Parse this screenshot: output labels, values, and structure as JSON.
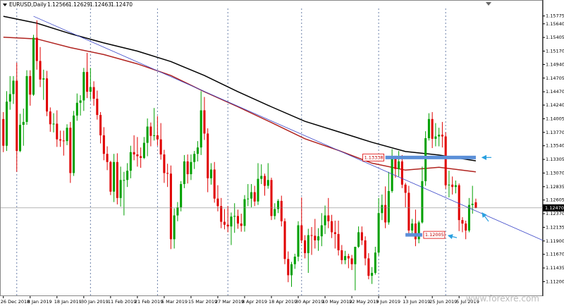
{
  "chart_data": {
    "type": "candlestick",
    "title": "EURUSD,Daily",
    "watermark": "www.forexre.com",
    "up_color": "#00a000",
    "down_color": "#e00000",
    "categories": [
      "26 Dec 2018",
      null,
      null,
      null,
      null,
      null,
      null,
      null,
      "8 Jan 2019",
      null,
      null,
      null,
      null,
      null,
      null,
      null,
      "18 Jan 2019",
      null,
      null,
      null,
      null,
      null,
      null,
      null,
      "30 Jan 2019",
      null,
      null,
      null,
      null,
      null,
      null,
      null,
      "11 Feb 2019",
      null,
      null,
      null,
      null,
      null,
      null,
      null,
      "21 Feb 2019",
      null,
      null,
      null,
      null,
      null,
      null,
      null,
      "5 Mar 2019",
      null,
      null,
      null,
      null,
      null,
      null,
      null,
      "15 Mar 2019",
      null,
      null,
      null,
      null,
      null,
      null,
      null,
      "27 Mar 2019",
      null,
      null,
      null,
      null,
      null,
      null,
      null,
      "8 Apr 2019",
      null,
      null,
      null,
      null,
      null,
      null,
      null,
      "18 Apr 2019",
      null,
      null,
      null,
      null,
      null,
      null,
      null,
      "30 Apr 2019",
      null,
      null,
      null,
      null,
      null,
      null,
      null,
      "10 May 2019",
      null,
      null,
      null,
      null,
      null,
      null,
      null,
      "22 May 2019",
      null,
      null,
      null,
      null,
      null,
      null,
      null,
      "3 Jun 2019",
      null,
      null,
      null,
      null,
      null,
      null,
      null,
      "13 Jun 2019",
      null,
      null,
      null,
      null,
      null,
      null,
      null,
      "25 Jun 2019",
      null,
      null,
      null,
      null,
      null,
      null,
      null,
      "5 Jul 2019",
      null,
      null,
      null,
      null,
      null
    ],
    "ohlc": [
      [
        1.14,
        1.1412,
        1.1343,
        1.1354
      ],
      [
        1.1354,
        1.1448,
        1.1345,
        1.143
      ],
      [
        1.143,
        1.1474,
        1.1416,
        1.1443
      ],
      [
        1.1443,
        1.1474,
        1.1426,
        1.1466
      ],
      [
        1.1466,
        1.1497,
        1.1309,
        1.1345
      ],
      [
        1.1345,
        1.1409,
        1.1343,
        1.139
      ],
      [
        1.139,
        1.1418,
        1.1354,
        1.1395
      ],
      [
        1.1395,
        1.1484,
        1.139,
        1.1474
      ],
      [
        1.1474,
        1.1484,
        1.1423,
        1.1442
      ],
      [
        1.1442,
        1.1545,
        1.144,
        1.154
      ],
      [
        1.154,
        1.157,
        1.1485,
        1.15
      ],
      [
        1.15,
        1.1524,
        1.1455,
        1.1468
      ],
      [
        1.1468,
        1.1485,
        1.1433,
        1.147
      ],
      [
        1.147,
        1.1483,
        1.1405,
        1.1413
      ],
      [
        1.1413,
        1.142,
        1.1378,
        1.1391
      ],
      [
        1.1391,
        1.141,
        1.1377,
        1.1392
      ],
      [
        1.1392,
        1.1415,
        1.1352,
        1.1365
      ],
      [
        1.1365,
        1.138,
        1.1352,
        1.1363
      ],
      [
        1.1363,
        1.138,
        1.1337,
        1.1362
      ],
      [
        1.1362,
        1.1391,
        1.1355,
        1.1385
      ],
      [
        1.1385,
        1.1395,
        1.129,
        1.1307
      ],
      [
        1.1307,
        1.1414,
        1.1302,
        1.1406
      ],
      [
        1.1406,
        1.1444,
        1.1397,
        1.1428
      ],
      [
        1.1428,
        1.1441,
        1.1406,
        1.1432
      ],
      [
        1.1432,
        1.1488,
        1.1414,
        1.1481
      ],
      [
        1.1481,
        1.1514,
        1.1436,
        1.1447
      ],
      [
        1.1447,
        1.1488,
        1.1433,
        1.1455
      ],
      [
        1.1455,
        1.1465,
        1.1423,
        1.1435
      ],
      [
        1.1435,
        1.1449,
        1.1399,
        1.1407
      ],
      [
        1.1407,
        1.1412,
        1.1358,
        1.1372
      ],
      [
        1.1372,
        1.1386,
        1.1329,
        1.134
      ],
      [
        1.134,
        1.1353,
        1.1312,
        1.1326
      ],
      [
        1.1326,
        1.1328,
        1.1269,
        1.1275
      ],
      [
        1.1275,
        1.134,
        1.1257,
        1.1326
      ],
      [
        1.1326,
        1.1341,
        1.1253,
        1.1264
      ],
      [
        1.1264,
        1.1318,
        1.1249,
        1.1295
      ],
      [
        1.1295,
        1.1309,
        1.1234,
        1.1295
      ],
      [
        1.1295,
        1.1324,
        1.1283,
        1.1311
      ],
      [
        1.1311,
        1.1354,
        1.1298,
        1.1343
      ],
      [
        1.1343,
        1.1372,
        1.1329,
        1.1339
      ],
      [
        1.1339,
        1.1369,
        1.1318,
        1.1336
      ],
      [
        1.1336,
        1.1351,
        1.1316,
        1.1333
      ],
      [
        1.1333,
        1.1369,
        1.1331,
        1.1359
      ],
      [
        1.1359,
        1.1401,
        1.1336,
        1.1387
      ],
      [
        1.1387,
        1.1394,
        1.1353,
        1.1371
      ],
      [
        1.1371,
        1.1419,
        1.1363,
        1.1372
      ],
      [
        1.1372,
        1.1405,
        1.1354,
        1.1365
      ],
      [
        1.1365,
        1.1393,
        1.133,
        1.1339
      ],
      [
        1.1339,
        1.1347,
        1.129,
        1.1307
      ],
      [
        1.1307,
        1.1323,
        1.1283,
        1.1306
      ],
      [
        1.1306,
        1.132,
        1.1176,
        1.1193
      ],
      [
        1.1193,
        1.1246,
        1.1177,
        1.1234
      ],
      [
        1.1234,
        1.1257,
        1.1224,
        1.1248
      ],
      [
        1.1248,
        1.1293,
        1.1241,
        1.1288
      ],
      [
        1.1288,
        1.1338,
        1.1281,
        1.1327
      ],
      [
        1.1327,
        1.1339,
        1.1289,
        1.1305
      ],
      [
        1.1305,
        1.1339,
        1.1295,
        1.1326
      ],
      [
        1.1326,
        1.1345,
        1.1314,
        1.134
      ],
      [
        1.134,
        1.1362,
        1.1327,
        1.1351
      ],
      [
        1.1351,
        1.1448,
        1.1338,
        1.1415
      ],
      [
        1.1415,
        1.1438,
        1.1364,
        1.1375
      ],
      [
        1.1375,
        1.1384,
        1.1274,
        1.1298
      ],
      [
        1.1298,
        1.1324,
        1.1287,
        1.1313
      ],
      [
        1.1313,
        1.1326,
        1.1256,
        1.1263
      ],
      [
        1.1263,
        1.1286,
        1.1241,
        1.125
      ],
      [
        1.125,
        1.1264,
        1.1212,
        1.1223
      ],
      [
        1.1223,
        1.1245,
        1.121,
        1.1218
      ],
      [
        1.1218,
        1.125,
        1.1205,
        1.1215
      ],
      [
        1.1215,
        1.1239,
        1.1183,
        1.1232
      ],
      [
        1.1232,
        1.1255,
        1.1204,
        1.1233
      ],
      [
        1.1233,
        1.1244,
        1.1211,
        1.122
      ],
      [
        1.122,
        1.1237,
        1.1206,
        1.1216
      ],
      [
        1.1216,
        1.1269,
        1.1206,
        1.1262
      ],
      [
        1.1262,
        1.1288,
        1.125,
        1.1263
      ],
      [
        1.1263,
        1.1288,
        1.1248,
        1.1274
      ],
      [
        1.1274,
        1.1285,
        1.125,
        1.1258
      ],
      [
        1.1258,
        1.1324,
        1.1252,
        1.1297
      ],
      [
        1.1297,
        1.1322,
        1.1288,
        1.1302
      ],
      [
        1.1302,
        1.1306,
        1.1268,
        1.1285
      ],
      [
        1.1285,
        1.1324,
        1.128,
        1.1295
      ],
      [
        1.1295,
        1.1299,
        1.1226,
        1.1233
      ],
      [
        1.1233,
        1.1255,
        1.1227,
        1.1245
      ],
      [
        1.1245,
        1.1262,
        1.1238,
        1.1259
      ],
      [
        1.1259,
        1.1268,
        1.1215,
        1.1224
      ],
      [
        1.1224,
        1.1229,
        1.115,
        1.1159
      ],
      [
        1.1159,
        1.1172,
        1.1119,
        1.1131
      ],
      [
        1.1131,
        1.1154,
        1.1111,
        1.115
      ],
      [
        1.115,
        1.1168,
        1.1142,
        1.1163
      ],
      [
        1.1163,
        1.1224,
        1.1155,
        1.1217
      ],
      [
        1.1217,
        1.1265,
        1.1186,
        1.1191
      ],
      [
        1.1191,
        1.12,
        1.116,
        1.1169
      ],
      [
        1.1169,
        1.1211,
        1.1135,
        1.12
      ],
      [
        1.12,
        1.1214,
        1.1166,
        1.1199
      ],
      [
        1.1199,
        1.1228,
        1.1177,
        1.1191
      ],
      [
        1.1191,
        1.1212,
        1.1173,
        1.1198
      ],
      [
        1.1198,
        1.1238,
        1.1181,
        1.1217
      ],
      [
        1.1217,
        1.1251,
        1.1202,
        1.1234
      ],
      [
        1.1234,
        1.1264,
        1.1212,
        1.1224
      ],
      [
        1.1224,
        1.1235,
        1.1195,
        1.1205
      ],
      [
        1.1205,
        1.1225,
        1.1177,
        1.1202
      ],
      [
        1.1202,
        1.1225,
        1.1165,
        1.1174
      ],
      [
        1.1174,
        1.1183,
        1.115,
        1.1157
      ],
      [
        1.1157,
        1.1173,
        1.115,
        1.1164
      ],
      [
        1.1164,
        1.1168,
        1.1143,
        1.116
      ],
      [
        1.116,
        1.1166,
        1.114,
        1.115
      ],
      [
        1.115,
        1.118,
        1.1105,
        1.118
      ],
      [
        1.118,
        1.1215,
        1.1178,
        1.1205
      ],
      [
        1.1205,
        1.1215,
        1.1183,
        1.1191
      ],
      [
        1.1191,
        1.1198,
        1.1148,
        1.116
      ],
      [
        1.116,
        1.1169,
        1.1124,
        1.113
      ],
      [
        1.113,
        1.1145,
        1.1116,
        1.1135
      ],
      [
        1.1135,
        1.118,
        1.1132,
        1.117
      ],
      [
        1.117,
        1.1264,
        1.1165,
        1.1238
      ],
      [
        1.1238,
        1.127,
        1.1226,
        1.1252
      ],
      [
        1.1252,
        1.1284,
        1.1212,
        1.1222
      ],
      [
        1.1222,
        1.1309,
        1.1218,
        1.1276
      ],
      [
        1.1276,
        1.1348,
        1.1273,
        1.1332
      ],
      [
        1.1332,
        1.1333,
        1.1299,
        1.1314
      ],
      [
        1.1314,
        1.1345,
        1.1301,
        1.1327
      ],
      [
        1.1327,
        1.1338,
        1.1281,
        1.1287
      ],
      [
        1.1287,
        1.129,
        1.1248,
        1.1273
      ],
      [
        1.1273,
        1.1285,
        1.1201,
        1.1208
      ],
      [
        1.1208,
        1.1228,
        1.12,
        1.122
      ],
      [
        1.122,
        1.1244,
        1.1181,
        1.1193
      ],
      [
        1.1193,
        1.1225,
        1.1186,
        1.1222
      ],
      [
        1.1222,
        1.1318,
        1.122,
        1.1293
      ],
      [
        1.1293,
        1.1379,
        1.1285,
        1.1367
      ],
      [
        1.1367,
        1.141,
        1.1363,
        1.14
      ],
      [
        1.14,
        1.1412,
        1.135,
        1.1366
      ],
      [
        1.1366,
        1.1393,
        1.1353,
        1.137
      ],
      [
        1.137,
        1.1385,
        1.1353,
        1.1373
      ],
      [
        1.1373,
        1.1395,
        1.1351,
        1.137
      ],
      [
        1.137,
        1.1377,
        1.128,
        1.1286
      ],
      [
        1.1286,
        1.1311,
        1.1265,
        1.1287
      ],
      [
        1.1287,
        1.1301,
        1.127,
        1.1283
      ],
      [
        1.1283,
        1.1294,
        1.1272,
        1.1286
      ],
      [
        1.1286,
        1.1289,
        1.1207,
        1.1226
      ],
      [
        1.1226,
        1.1231,
        1.1205,
        1.122
      ],
      [
        1.122,
        1.1225,
        1.1193,
        1.1208
      ],
      [
        1.1208,
        1.1264,
        1.1205,
        1.1252
      ],
      [
        1.1252,
        1.1285,
        1.1237,
        1.1254
      ],
      [
        1.12566,
        1.12629,
        1.12463,
        1.1247
      ]
    ],
    "current_price": {
      "value": 1.1247,
      "label": "1.12470"
    },
    "series": [
      {
        "color": "#000000",
        "x": [
          0,
          10,
          20,
          30,
          40,
          50,
          60,
          70,
          80,
          90,
          100,
          110,
          120,
          130,
          141
        ],
        "values": [
          1.1577,
          1.1565,
          1.1547,
          1.1531,
          1.1517,
          1.1499,
          1.1475,
          1.1447,
          1.1421,
          1.1396,
          1.1378,
          1.136,
          1.1344,
          1.1338,
          1.1328
        ]
      },
      {
        "color": "#b0231f",
        "x": [
          0,
          10,
          20,
          30,
          40,
          50,
          60,
          70,
          80,
          90,
          100,
          110,
          120,
          130,
          141
        ],
        "values": [
          1.1541,
          1.1538,
          1.1523,
          1.1511,
          1.1495,
          1.1475,
          1.1447,
          1.1421,
          1.1394,
          1.1366,
          1.1346,
          1.1324,
          1.1312,
          1.1317,
          1.1309
        ]
      }
    ],
    "trendline": {
      "color": "#3a46c8",
      "x": [
        9,
        161
      ],
      "values": [
        1.1577,
        1.1191
      ]
    },
    "levels": [
      {
        "value": 1.13338,
        "x": [
          114,
          141
        ],
        "color": "#5b8fd8"
      },
      {
        "value": 1.12005,
        "x": [
          120,
          125
        ],
        "color": "#5b8fd8"
      }
    ],
    "period_separators": [
      4,
      26,
      46,
      67,
      89,
      112,
      132
    ],
    "xlim": [
      -1,
      161
    ],
    "ylim": [
      1.1095,
      1.1605
    ],
    "yticks": [
      {
        "value": 1.15775,
        "label": "1.15775"
      },
      {
        "value": 1.1564,
        "label": "1.15640"
      },
      {
        "value": 1.15405,
        "label": "1.15405"
      },
      {
        "value": 1.1517,
        "label": "1.15170"
      },
      {
        "value": 1.1494,
        "label": "1.14940"
      },
      {
        "value": 1.14705,
        "label": "1.14705"
      },
      {
        "value": 1.1447,
        "label": "1.14470"
      },
      {
        "value": 1.1424,
        "label": "1.14240"
      },
      {
        "value": 1.14005,
        "label": "1.14005"
      },
      {
        "value": 1.1377,
        "label": "1.13770"
      },
      {
        "value": 1.1354,
        "label": "1.13540"
      },
      {
        "value": 1.13305,
        "label": "1.13305"
      },
      {
        "value": 1.1307,
        "label": "1.13070"
      },
      {
        "value": 1.12835,
        "label": "1.12835"
      },
      {
        "value": 1.12605,
        "label": "1.12605"
      },
      {
        "value": 1.1237,
        "label": "1.12370"
      },
      {
        "value": 1.12135,
        "label": "1.12135"
      },
      {
        "value": 1.119,
        "label": "1.11900"
      },
      {
        "value": 1.1167,
        "label": "1.11670"
      },
      {
        "value": 1.11435,
        "label": "1.11435"
      },
      {
        "value": 1.112,
        "label": "1.11200"
      }
    ]
  }
}
